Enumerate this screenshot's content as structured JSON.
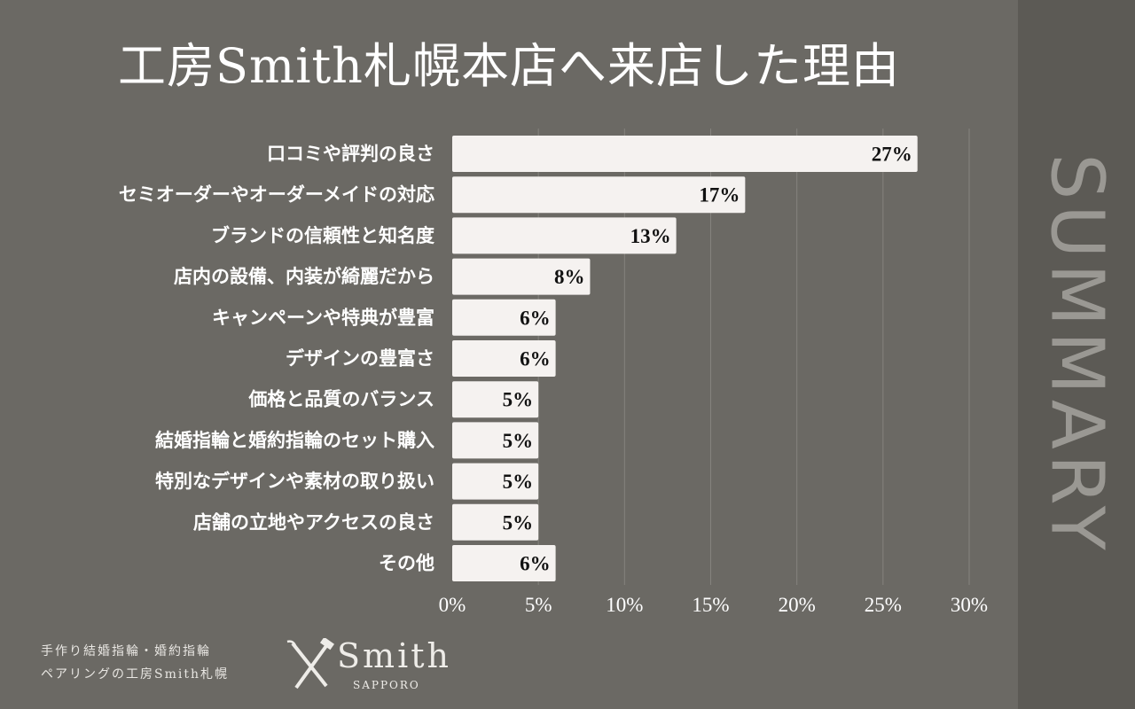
{
  "chart_data": {
    "type": "bar",
    "orientation": "horizontal",
    "title": "工房Smith札幌本店へ来店した理由",
    "categories": [
      "口コミや評判の良さ",
      "セミオーダーやオーダーメイドの対応",
      "ブランドの信頼性と知名度",
      "店内の設備、内装が綺麗だから",
      "キャンペーンや特典が豊富",
      "デザインの豊富さ",
      "価格と品質のバランス",
      "結婚指輪と婚約指輪のセット購入",
      "特別なデザインや素材の取り扱い",
      "店舗の立地やアクセスの良さ",
      "その他"
    ],
    "values": [
      27,
      17,
      13,
      8,
      6,
      6,
      5,
      5,
      5,
      5,
      6
    ],
    "value_labels": [
      "27%",
      "17%",
      "13%",
      "8%",
      "6%",
      "6%",
      "5%",
      "5%",
      "5%",
      "5%",
      "6%"
    ],
    "xlim": [
      0,
      30
    ],
    "xticks": [
      0,
      5,
      10,
      15,
      20,
      25,
      30
    ],
    "xtick_labels": [
      "0%",
      "5%",
      "10%",
      "15%",
      "20%",
      "25%",
      "30%"
    ],
    "grid": true,
    "bar_color": "#f5f2f0"
  },
  "side_label": "SUMMARY",
  "footer": {
    "tagline_1": "手作り結婚指輪・婚約指輪",
    "tagline_2": "ペアリングの工房Smith札幌",
    "logo_name": "Smith",
    "logo_sub": "SAPPORO"
  }
}
